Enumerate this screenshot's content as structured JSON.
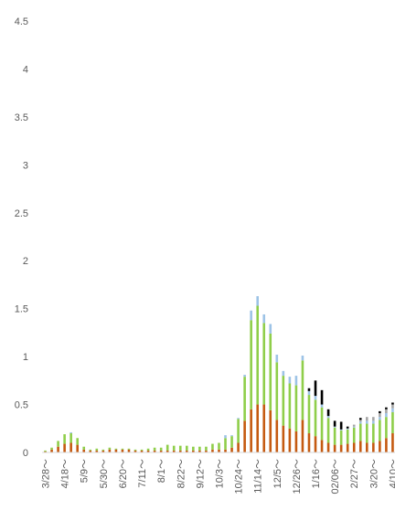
{
  "chart_data": {
    "type": "bar",
    "stacked": true,
    "title": "",
    "xlabel": "",
    "ylabel": "",
    "ylim": [
      0,
      4.5
    ],
    "yticks": [
      "0",
      "0.5",
      "1",
      "1.5",
      "2",
      "2.5",
      "3",
      "3.5",
      "4",
      "4.5"
    ],
    "grid": false,
    "legend": "none",
    "x_labels": [
      "3/28～",
      "4/18～",
      "5/9～",
      "5/30～",
      "6/20～",
      "7/11～",
      "8/1～",
      "8/22～",
      "9/12～",
      "10/3～",
      "10/24～",
      "11/14～",
      "12/5～",
      "12/26～",
      "1/16～",
      "02/06～",
      "2/27～",
      "3/20～",
      "4/10～"
    ],
    "categories_count": 56,
    "series": [
      {
        "color": "#c55a11",
        "values": [
          0.01,
          0.03,
          0.06,
          0.09,
          0.1,
          0.08,
          0.03,
          0.02,
          0.02,
          0.02,
          0.03,
          0.03,
          0.03,
          0.03,
          0.02,
          0.02,
          0.02,
          0.02,
          0.02,
          0.02,
          0.02,
          0.02,
          0.02,
          0.02,
          0.02,
          0.02,
          0.03,
          0.03,
          0.03,
          0.05,
          0.1,
          0.33,
          0.45,
          0.5,
          0.5,
          0.44,
          0.34,
          0.28,
          0.25,
          0.22,
          0.34,
          0.2,
          0.17,
          0.13,
          0.1,
          0.08,
          0.08,
          0.09,
          0.1,
          0.12,
          0.1,
          0.1,
          0.12,
          0.15,
          0.2,
          0.22
        ]
      },
      {
        "color": "#8fce4a",
        "values": [
          0.01,
          0.02,
          0.06,
          0.1,
          0.1,
          0.07,
          0.03,
          0.01,
          0.02,
          0.01,
          0.02,
          0.01,
          0.01,
          0.01,
          0.01,
          0.01,
          0.02,
          0.03,
          0.03,
          0.06,
          0.05,
          0.05,
          0.05,
          0.04,
          0.04,
          0.04,
          0.06,
          0.07,
          0.12,
          0.12,
          0.25,
          0.46,
          0.93,
          1.03,
          0.85,
          0.8,
          0.6,
          0.52,
          0.47,
          0.48,
          0.62,
          0.4,
          0.38,
          0.34,
          0.26,
          0.18,
          0.15,
          0.15,
          0.16,
          0.18,
          0.2,
          0.2,
          0.22,
          0.22,
          0.22,
          0.25
        ]
      },
      {
        "color": "#9dc3e6",
        "values": [
          0.0,
          0.0,
          0.0,
          0.0,
          0.01,
          0.0,
          0.0,
          0.0,
          0.0,
          0.0,
          0.0,
          0.0,
          0.0,
          0.0,
          0.0,
          0.0,
          0.0,
          0.0,
          0.0,
          0.0,
          0.0,
          0.0,
          0.0,
          0.0,
          0.0,
          0.0,
          0.0,
          0.0,
          0.03,
          0.01,
          0.01,
          0.02,
          0.1,
          0.1,
          0.09,
          0.1,
          0.08,
          0.05,
          0.07,
          0.1,
          0.05,
          0.04,
          0.04,
          0.03,
          0.02,
          0.01,
          0.01,
          0.01,
          0.01,
          0.02,
          0.03,
          0.03,
          0.03,
          0.04,
          0.04,
          0.04
        ]
      },
      {
        "color": "#a6a6a6",
        "values": [
          0.0,
          0.0,
          0.0,
          0.0,
          0.0,
          0.0,
          0.0,
          0.0,
          0.0,
          0.0,
          0.0,
          0.0,
          0.0,
          0.0,
          0.0,
          0.0,
          0.0,
          0.0,
          0.0,
          0.0,
          0.0,
          0.0,
          0.0,
          0.0,
          0.0,
          0.0,
          0.0,
          0.0,
          0.0,
          0.0,
          0.0,
          0.0,
          0.0,
          0.0,
          0.0,
          0.0,
          0.0,
          0.0,
          0.0,
          0.0,
          0.0,
          0.0,
          0.0,
          0.0,
          0.0,
          0.0,
          0.0,
          0.0,
          0.02,
          0.02,
          0.04,
          0.04,
          0.04,
          0.04,
          0.04,
          0.04
        ]
      },
      {
        "color": "#000000",
        "values": [
          0.0,
          0.0,
          0.0,
          0.0,
          0.0,
          0.0,
          0.0,
          0.0,
          0.0,
          0.0,
          0.0,
          0.0,
          0.0,
          0.0,
          0.0,
          0.0,
          0.0,
          0.0,
          0.0,
          0.0,
          0.0,
          0.0,
          0.0,
          0.0,
          0.0,
          0.0,
          0.0,
          0.0,
          0.0,
          0.0,
          0.0,
          0.0,
          0.0,
          0.0,
          0.0,
          0.0,
          0.0,
          0.0,
          0.0,
          0.0,
          0.0,
          0.03,
          0.16,
          0.15,
          0.07,
          0.06,
          0.08,
          0.02,
          0.0,
          0.02,
          0.0,
          0.0,
          0.02,
          0.02,
          0.02,
          0.02
        ]
      }
    ]
  }
}
